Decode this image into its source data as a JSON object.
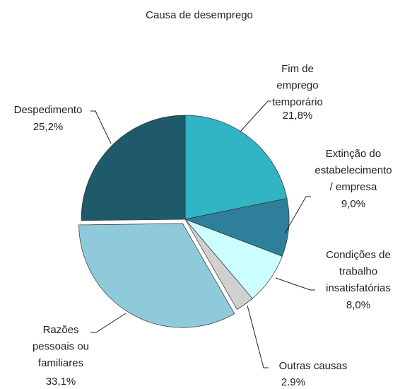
{
  "chart_data": {
    "type": "pie",
    "title": "Causa de desemprego",
    "categories": [
      [
        "Fim de",
        "emprego",
        "temporário"
      ],
      [
        "Extinção do",
        "estabelecimento",
        "/ empresa"
      ],
      [
        "Condições de",
        "trabalho",
        "insatisfatórias"
      ],
      [
        "Outras causas"
      ],
      [
        "Razões",
        "pessoais ou",
        "familiares"
      ],
      [
        "Despedimento"
      ]
    ],
    "values": [
      21.8,
      9.0,
      8.0,
      2.9,
      33.1,
      25.2
    ],
    "value_labels": [
      "21,8%",
      "9,0%",
      "8,0%",
      "2.9%",
      "33,1%",
      "25,2%"
    ],
    "colors": [
      "#31b4c4",
      "#2e7f99",
      "#ccffff",
      "#d0d0d0",
      "#8ecad9",
      "#1f5a6b"
    ],
    "explode": [
      false,
      false,
      false,
      false,
      true,
      false
    ]
  }
}
